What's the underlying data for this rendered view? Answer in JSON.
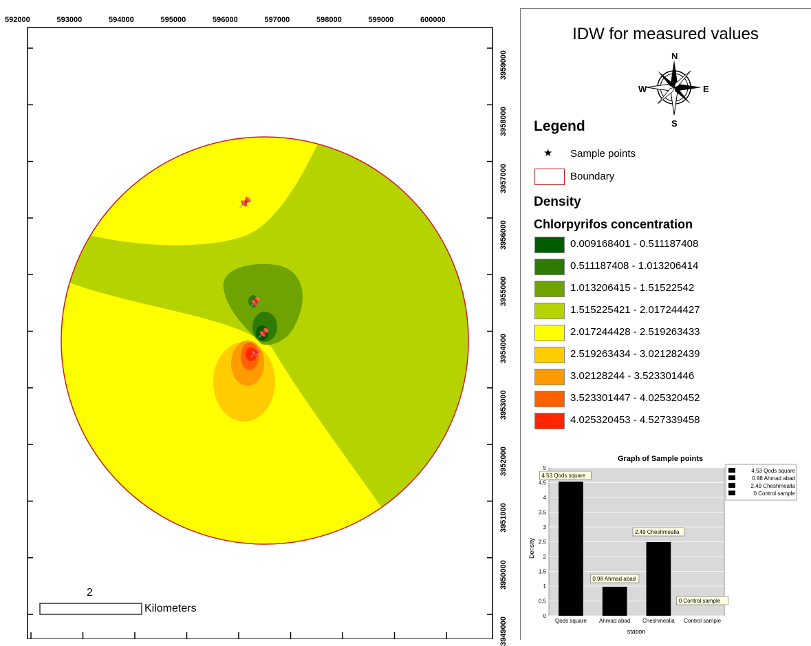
{
  "map": {
    "x_ticks": [
      "592000",
      "593000",
      "594000",
      "595000",
      "596000",
      "597000",
      "598000",
      "599000",
      "600000"
    ],
    "y_ticks": [
      "3959000",
      "3958000",
      "3957000",
      "3956000",
      "3955000",
      "3954000",
      "3953000",
      "3952000",
      "3951000",
      "3950000",
      "3949000"
    ],
    "sample_point_count": 5,
    "colors": {
      "boundary": "#cc1e1e",
      "class_colors": [
        "#005c00",
        "#2f7a05",
        "#6fa300",
        "#b5d300",
        "#ffff00",
        "#ffcc00",
        "#ff9a00",
        "#ff6100",
        "#ff2600"
      ]
    }
  },
  "legend": {
    "title": "IDW for measured values",
    "heading": "Legend",
    "sample_points_label": "Sample points",
    "boundary_label": "Boundary",
    "density_heading": "Density",
    "concentration_heading": "Chlorpyrifos concentration",
    "classes": [
      "0.009168401 - 0.511187408",
      "0.511187408 - 1.013206414",
      "1.013206415 - 1.51522542",
      "1.515225421 - 2.017244427",
      "2.017244428 - 2.519263433",
      "2.519263434 - 3.021282439",
      "3.02128244 - 3.523301446",
      "3.523301447 - 4.025320452",
      "4.025320453 - 4.527339458"
    ]
  },
  "compass": {
    "n": "N",
    "s": "S",
    "e": "E",
    "w": "W"
  },
  "scale_bar": {
    "value": "2",
    "unit": "Kilometers"
  },
  "chart_data": {
    "type": "bar",
    "title": "Graph of Sample points",
    "xlabel": "station",
    "ylabel": "Density",
    "categories": [
      "Qods square",
      "Ahmad abad",
      "Cheshmealla",
      "Control sample"
    ],
    "values": [
      4.53,
      0.98,
      2.49,
      0
    ],
    "data_labels": [
      "4.53 Qods square",
      "0.98 Ahmad abad",
      "2.49 Cheshmealla",
      "0 Control sample"
    ],
    "legend_entries": [
      "4.53 Qods square",
      "0.98 Ahmad abad",
      "2.49 Cheshmealla",
      "0 Control sample"
    ],
    "y_ticks": [
      "0",
      "0.5",
      "1",
      "1.5",
      "2",
      "2.5",
      "3",
      "3.5",
      "4",
      "4.5",
      "5"
    ],
    "ylim": [
      0,
      5
    ],
    "grid": true,
    "legend_position": "right",
    "bar_color": "#000000"
  }
}
